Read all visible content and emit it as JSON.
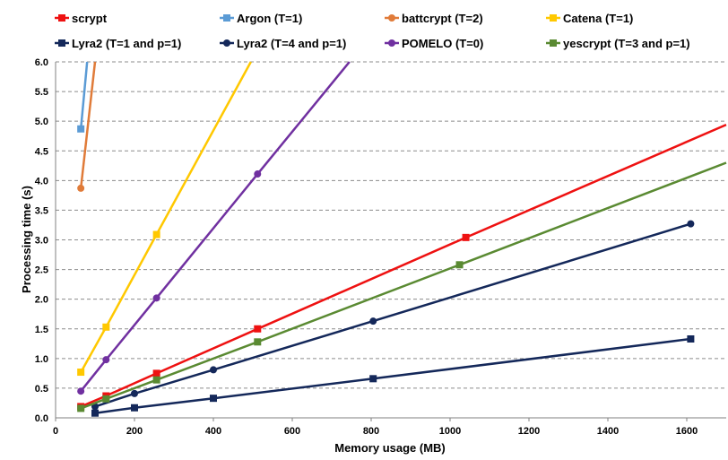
{
  "chart_data": {
    "type": "line",
    "title": "",
    "xlabel": "Memory usage (MB)",
    "ylabel": "Processing time (s)",
    "xlim": [
      0,
      1700
    ],
    "ylim": [
      0,
      6.0
    ],
    "xticks": [
      0,
      200,
      400,
      600,
      800,
      1000,
      1200,
      1400,
      1600
    ],
    "yticks": [
      0.0,
      0.5,
      1.0,
      1.5,
      2.0,
      2.5,
      3.0,
      3.5,
      4.0,
      4.5,
      5.0,
      5.5,
      6.0
    ],
    "grid": "horizontal dashed",
    "legend_placement": "top",
    "series": [
      {
        "name": "scrypt",
        "color": "#ee1111",
        "marker": "square",
        "points": [
          [
            64,
            0.19
          ],
          [
            128,
            0.37
          ],
          [
            256,
            0.75
          ],
          [
            512,
            1.5
          ],
          [
            1040,
            3.04
          ]
        ],
        "trend_end": [
          1700,
          4.94
        ]
      },
      {
        "name": "Argon (T=1)",
        "color": "#5b9bd5",
        "marker": "square",
        "points": [
          [
            64,
            4.87
          ]
        ],
        "trend_end": [
          80,
          6.0
        ]
      },
      {
        "name": "battcrypt (T=2)",
        "color": "#e07b39",
        "marker": "circle",
        "points": [
          [
            64,
            3.87
          ]
        ],
        "trend_end": [
          100,
          6.0
        ]
      },
      {
        "name": "Catena (T=1)",
        "color": "#ffc800",
        "marker": "square",
        "points": [
          [
            64,
            0.77
          ],
          [
            128,
            1.53
          ],
          [
            256,
            3.09
          ]
        ],
        "trend_end": [
          495,
          6.0
        ]
      },
      {
        "name": "Lyra2 (T=1 and p=1)",
        "color": "#14285a",
        "marker": "square",
        "points": [
          [
            100,
            0.08
          ],
          [
            200,
            0.17
          ],
          [
            400,
            0.33
          ],
          [
            805,
            0.66
          ],
          [
            1610,
            1.33
          ]
        ],
        "trend_end": [
          1610,
          1.33
        ]
      },
      {
        "name": "Lyra2 (T=4 and p=1)",
        "color": "#14285a",
        "marker": "circle",
        "points": [
          [
            100,
            0.19
          ],
          [
            200,
            0.41
          ],
          [
            400,
            0.81
          ],
          [
            805,
            1.63
          ],
          [
            1610,
            3.27
          ]
        ],
        "trend_end": [
          1610,
          3.27
        ]
      },
      {
        "name": "POMELO (T=0)",
        "color": "#7030a0",
        "marker": "circle",
        "points": [
          [
            64,
            0.45
          ],
          [
            128,
            0.98
          ],
          [
            256,
            2.02
          ],
          [
            512,
            4.11
          ]
        ],
        "trend_end": [
          745,
          6.0
        ]
      },
      {
        "name": "yescrypt (T=3 and p=1)",
        "color": "#5a8a32",
        "marker": "square",
        "points": [
          [
            64,
            0.16
          ],
          [
            128,
            0.32
          ],
          [
            256,
            0.64
          ],
          [
            512,
            1.28
          ],
          [
            1024,
            2.58
          ]
        ],
        "trend_end": [
          1700,
          4.3
        ]
      }
    ]
  }
}
